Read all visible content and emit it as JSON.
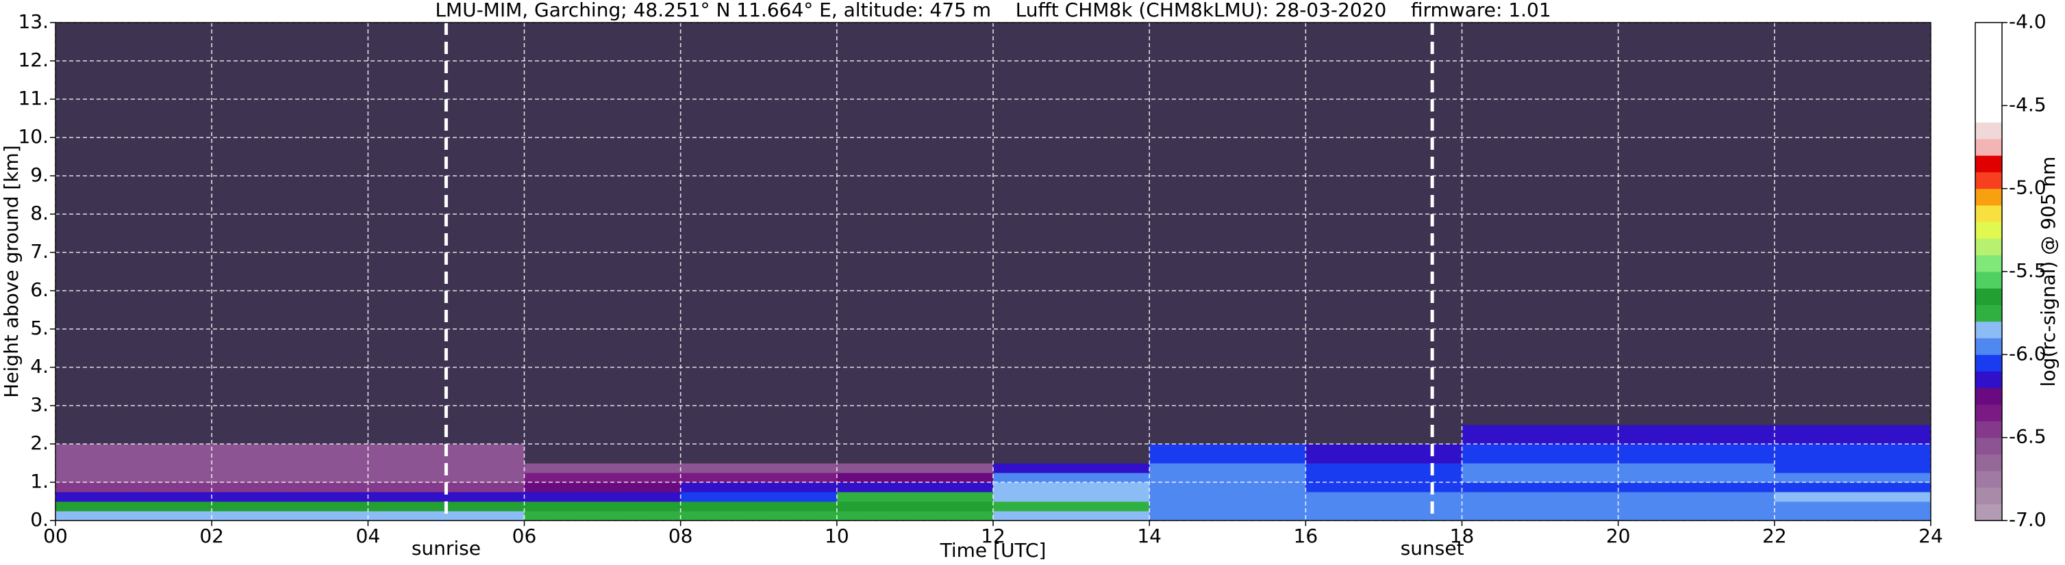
{
  "chart_data": {
    "type": "heatmap",
    "title": "LMU-MIM, Garching; 48.251° N 11.664° E, altitude: 475 m    Lufft CHM8k (CHM8kLMU): 28-03-2020    firmware: 1.01",
    "x_label": "Time [UTC]",
    "y_label": "Height above ground [km]",
    "colorbar_label": "log(rc-signal) @ 905 nm",
    "x_edges": [
      0,
      2,
      4,
      6,
      8,
      10,
      12,
      14,
      16,
      18,
      20,
      22,
      24
    ],
    "y_edges": [
      0,
      0.25,
      0.5,
      0.75,
      1,
      1.25,
      1.5,
      2,
      2.5,
      3,
      4,
      6,
      9,
      13
    ],
    "z": [
      [
        -5.9,
        -5.9,
        -5.9,
        -5.75,
        -5.75,
        -5.75,
        -5.9,
        -5.95,
        -5.95,
        -5.95,
        -5.95,
        -5.95
      ],
      [
        -5.7,
        -5.7,
        -5.7,
        -5.7,
        -5.7,
        -5.7,
        -5.8,
        -6.0,
        -6.0,
        -6.0,
        -6.0,
        -6.0
      ],
      [
        -6.2,
        -6.2,
        -6.15,
        -6.2,
        -6.1,
        -5.75,
        -5.85,
        -6.0,
        -6.0,
        -6.0,
        -5.95,
        -5.9
      ],
      [
        -6.5,
        -6.5,
        -6.5,
        -6.3,
        -6.2,
        -6.15,
        -5.9,
        -6.0,
        -6.05,
        -6.05,
        -6.05,
        -6.05
      ],
      [
        -6.55,
        -6.55,
        -6.55,
        -6.4,
        -6.35,
        -6.3,
        -6.0,
        -6.0,
        -6.05,
        -6.0,
        -6.0,
        -6.0
      ],
      [
        -6.55,
        -6.55,
        -6.55,
        -6.6,
        -6.6,
        -6.6,
        -6.2,
        -6.0,
        -6.1,
        -6.0,
        -6.0,
        -6.05
      ],
      [
        -6.6,
        -6.6,
        -6.6,
        -7.3,
        -7.3,
        -7.3,
        -7.2,
        -6.1,
        -6.15,
        -6.1,
        -6.05,
        -6.1
      ],
      [
        -7.3,
        -7.3,
        -7.3,
        -7.3,
        -7.3,
        -7.3,
        -7.3,
        -7.3,
        -7.3,
        -6.2,
        -6.2,
        -6.15
      ],
      [
        -7.3,
        -7.3,
        -7.3,
        -7.3,
        -7.3,
        -7.3,
        -7.3,
        -7.3,
        -7.3,
        -7.3,
        -7.3,
        -7.2
      ],
      [
        -7.4,
        -7.4,
        -7.4,
        -7.3,
        -7.3,
        -7.3,
        -7.3,
        -7.3,
        -7.3,
        -7.4,
        -7.4,
        -7.4
      ],
      [
        -7.3,
        -7.3,
        -7.3,
        -7.3,
        -7.3,
        -7.3,
        -7.3,
        -7.3,
        -7.3,
        -7.3,
        -7.3,
        -7.3
      ],
      [
        -7.3,
        -7.3,
        -7.3,
        -7.3,
        -7.3,
        -7.3,
        -7.3,
        -7.3,
        -7.3,
        -7.3,
        -7.3,
        -7.3
      ],
      [
        -7.3,
        -7.3,
        -7.3,
        -7.3,
        -7.3,
        -7.3,
        -7.3,
        -7.3,
        -7.3,
        -7.3,
        -7.3,
        -7.3
      ]
    ],
    "xlim": [
      0,
      24
    ],
    "xticks": [
      {
        "value": 0,
        "label": "00"
      },
      {
        "value": 2,
        "label": "02"
      },
      {
        "value": 4,
        "label": "04"
      },
      {
        "value": 6,
        "label": "06"
      },
      {
        "value": 8,
        "label": "08"
      },
      10,
      12,
      14,
      16,
      18,
      20,
      22,
      24
    ],
    "ylim": [
      0,
      13
    ],
    "yticks": [
      {
        "value": 0,
        "label": "0."
      },
      {
        "value": 1,
        "label": "1."
      },
      {
        "value": 2,
        "label": "2."
      },
      {
        "value": 3,
        "label": "3."
      },
      {
        "value": 4,
        "label": "4."
      },
      {
        "value": 5,
        "label": "5."
      },
      {
        "value": 6,
        "label": "6."
      },
      {
        "value": 7,
        "label": "7."
      },
      {
        "value": 8,
        "label": "8."
      },
      {
        "value": 9,
        "label": "9."
      },
      {
        "value": 10,
        "label": "10."
      },
      {
        "value": 11,
        "label": "11."
      },
      {
        "value": 12,
        "label": "12."
      },
      {
        "value": 13,
        "label": "13."
      }
    ],
    "zlim": [
      -7,
      -4
    ],
    "zticks": [
      {
        "value": -7,
        "label": "-7.0"
      },
      {
        "value": -6.5,
        "label": "-6.5"
      },
      {
        "value": -6,
        "label": "-6.0"
      },
      {
        "value": -5.5,
        "label": "-5.5"
      },
      {
        "value": -5,
        "label": "-5.0"
      },
      {
        "value": -4.5,
        "label": "-4.5"
      },
      {
        "value": -4,
        "label": "-4.0"
      }
    ],
    "colors": [
      "#b39cb3",
      "#a98aa9",
      "#a07aa2",
      "#96689a",
      "#8c5492",
      "#84398a",
      "#7a1a82",
      "#6a0a80",
      "#3010c8",
      "#1a3cf0",
      "#5088f2",
      "#8cbcf6",
      "#30b040",
      "#22a032",
      "#50d060",
      "#80e878",
      "#b8f070",
      "#e0f850",
      "#f8e040",
      "#f8a010",
      "#f84020",
      "#e00000",
      "#f4b4b4",
      "#f0d8d8",
      "#ffffff",
      "#ffffff",
      "#ffffff",
      "#ffffff",
      "#ffffff",
      "#ffffff"
    ],
    "under_color": "#3e3350",
    "grid": true,
    "vlines": [
      {
        "x": 5.0,
        "label": "sunrise"
      },
      {
        "x": 17.62,
        "label": "sunset"
      }
    ]
  }
}
